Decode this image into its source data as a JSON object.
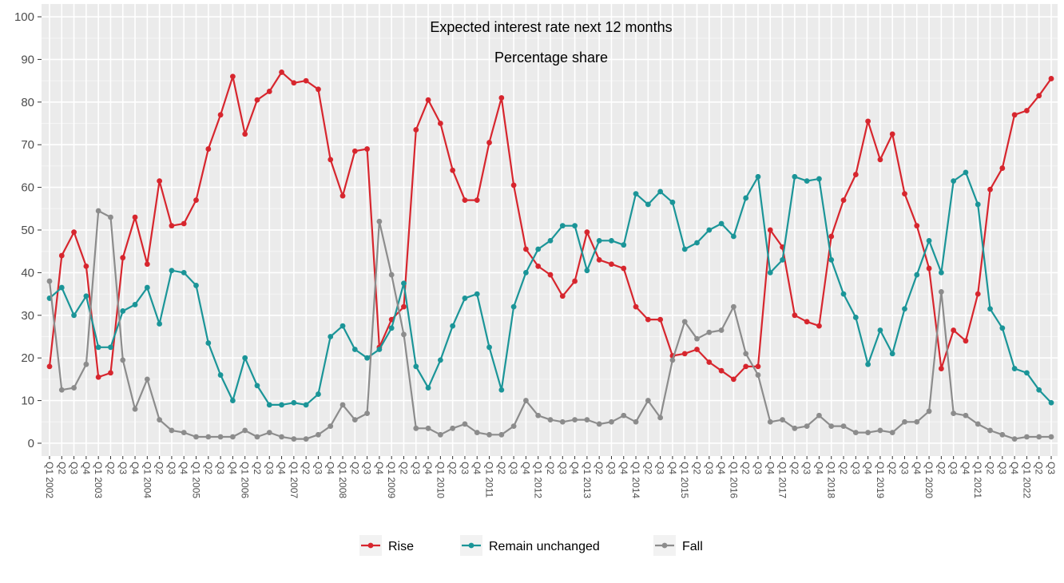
{
  "chart_data": {
    "type": "line",
    "title": "Expected interest rate next 12 months",
    "subtitle": "Percentage share",
    "xlabel": "",
    "ylabel": "",
    "ylim": [
      -3,
      103
    ],
    "y_ticks": [
      0,
      10,
      20,
      30,
      40,
      50,
      60,
      70,
      80,
      90,
      100
    ],
    "grid": true,
    "legend_position": "bottom",
    "categories": [
      "Q1 2002",
      "Q2",
      "Q3",
      "Q4",
      "Q1 2003",
      "Q2",
      "Q3",
      "Q4",
      "Q1 2004",
      "Q2",
      "Q3",
      "Q4",
      "Q1 2005",
      "Q2",
      "Q3",
      "Q4",
      "Q1 2006",
      "Q2",
      "Q3",
      "Q4",
      "Q1 2007",
      "Q2",
      "Q3",
      "Q4",
      "Q1 2008",
      "Q2",
      "Q3",
      "Q4",
      "Q1 2009",
      "Q2",
      "Q3",
      "Q4",
      "Q1 2010",
      "Q2",
      "Q3",
      "Q4",
      "Q1 2011",
      "Q2",
      "Q3",
      "Q4",
      "Q1 2012",
      "Q2",
      "Q3",
      "Q4",
      "Q1 2013",
      "Q2",
      "Q3",
      "Q4",
      "Q1 2014",
      "Q2",
      "Q3",
      "Q4",
      "Q1 2015",
      "Q2",
      "Q3",
      "Q4",
      "Q1 2016",
      "Q2",
      "Q3",
      "Q4",
      "Q1 2017",
      "Q2",
      "Q3",
      "Q4",
      "Q1 2018",
      "Q2",
      "Q3",
      "Q4",
      "Q1 2019",
      "Q2",
      "Q3",
      "Q4",
      "Q1 2020",
      "Q2",
      "Q3",
      "Q4",
      "Q1 2021",
      "Q2",
      "Q3",
      "Q4",
      "Q1 2022",
      "Q2",
      "Q3"
    ],
    "series": [
      {
        "name": "Rise",
        "color": "#d7262e",
        "values": [
          18,
          44,
          49.5,
          41.5,
          15.5,
          16.5,
          43.5,
          53,
          42,
          61.5,
          51,
          51.5,
          57,
          69,
          77,
          86,
          72.5,
          80.5,
          82.5,
          87,
          84.5,
          85,
          83,
          66.5,
          58,
          68.5,
          69,
          22.5,
          29,
          32,
          73.5,
          80.5,
          75,
          64,
          57,
          57,
          70.5,
          81,
          60.5,
          45.5,
          41.5,
          39.5,
          34.5,
          38,
          49.5,
          43,
          42,
          41,
          32,
          29,
          29,
          20.5,
          21,
          22,
          19,
          17,
          15,
          18,
          18,
          50,
          46,
          30,
          28.5,
          27.5,
          48.5,
          57,
          63,
          75.5,
          66.5,
          72.5,
          58.5,
          51,
          41,
          17.5,
          26.5,
          24,
          35,
          59.5,
          64.5,
          77,
          78,
          81.5,
          85.5
        ]
      },
      {
        "name": "Remain unchanged",
        "color": "#1b9598",
        "values": [
          34,
          36.5,
          30,
          34.5,
          22.5,
          22.5,
          31,
          32.5,
          36.5,
          28,
          40.5,
          40,
          37,
          23.5,
          16,
          10,
          20,
          13.5,
          9,
          9,
          9.5,
          9,
          11.5,
          25,
          27.5,
          22,
          20,
          22,
          27,
          37.5,
          18,
          13,
          19.5,
          27.5,
          34,
          35,
          22.5,
          12.5,
          32,
          40,
          45.5,
          47.5,
          51,
          51,
          40.5,
          47.5,
          47.5,
          46.5,
          58.5,
          56,
          59,
          56.5,
          45.5,
          47,
          50,
          51.5,
          48.5,
          57.5,
          62.5,
          40,
          43,
          62.5,
          61.5,
          62,
          43,
          35,
          29.5,
          18.5,
          26.5,
          21,
          31.5,
          39.5,
          47.5,
          40,
          61.5,
          63.5,
          56,
          31.5,
          27,
          17.5,
          16.5,
          12.5,
          9.5
        ]
      },
      {
        "name": "Fall",
        "color": "#8c8c8c",
        "values": [
          38,
          12.5,
          13,
          18.5,
          54.5,
          53,
          19.5,
          8,
          15,
          5.5,
          3,
          2.5,
          1.5,
          1.5,
          1.5,
          1.5,
          3,
          1.5,
          2.5,
          1.5,
          1,
          1,
          2,
          4,
          9,
          5.5,
          7,
          52,
          39.5,
          25.5,
          3.5,
          3.5,
          2,
          3.5,
          4.5,
          2.5,
          2,
          2,
          4,
          10,
          6.5,
          5.5,
          5,
          5.5,
          5.5,
          4.5,
          5,
          6.5,
          5,
          10,
          6,
          19.5,
          28.5,
          24.5,
          26,
          26.5,
          32,
          21,
          16,
          5,
          5.5,
          3.5,
          4,
          6.5,
          4,
          4,
          2.5,
          2.5,
          3,
          2.5,
          5,
          5,
          7.5,
          35.5,
          7,
          6.5,
          4.5,
          3,
          2,
          1,
          1.5,
          1.5,
          1.5
        ]
      }
    ]
  }
}
